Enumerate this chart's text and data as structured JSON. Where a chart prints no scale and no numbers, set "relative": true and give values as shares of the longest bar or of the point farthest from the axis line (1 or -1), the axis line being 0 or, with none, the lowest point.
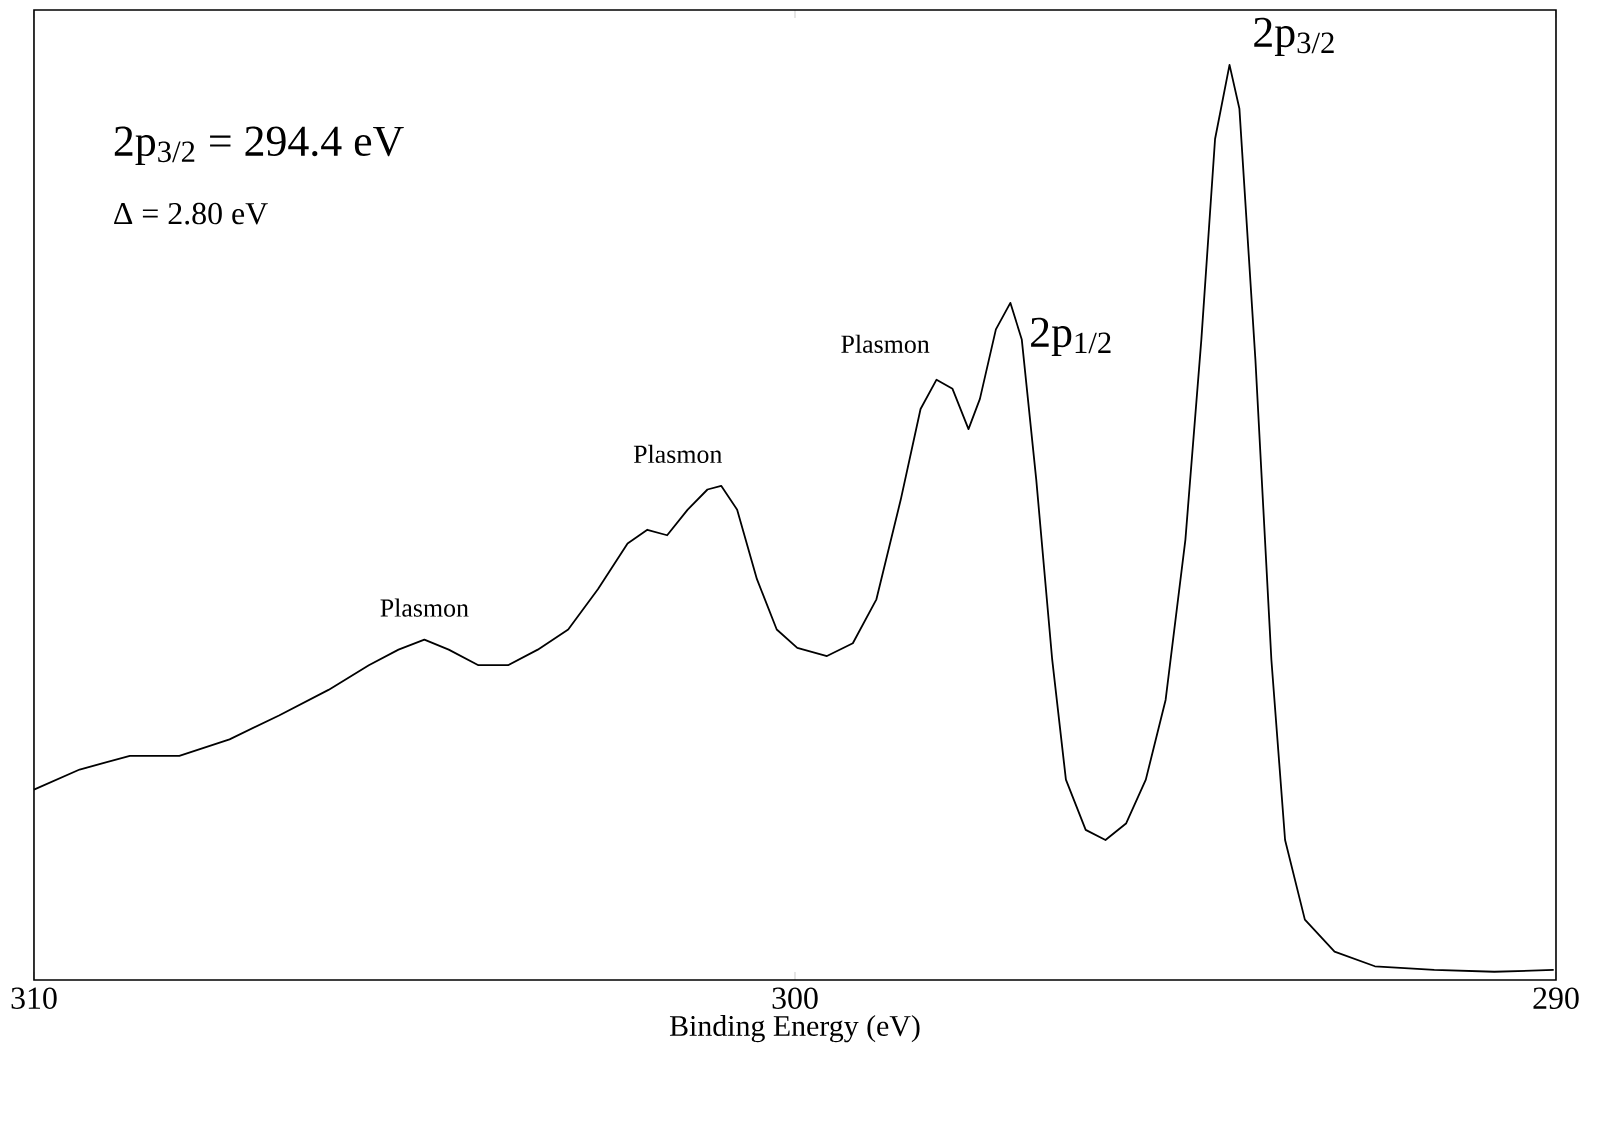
{
  "chart_data": {
    "type": "line",
    "relative": true,
    "xlabel": "Binding Energy (eV)",
    "xlim": [
      310,
      290
    ],
    "xticks": [
      310,
      300,
      290
    ],
    "x": [
      310.0,
      309.4,
      308.74,
      308.09,
      307.43,
      306.78,
      306.13,
      305.6,
      305.21,
      304.87,
      304.55,
      304.16,
      303.77,
      303.38,
      302.98,
      302.59,
      302.2,
      301.94,
      301.68,
      301.41,
      301.15,
      300.97,
      300.76,
      300.5,
      300.24,
      299.97,
      299.58,
      299.24,
      298.93,
      298.61,
      298.35,
      298.14,
      297.93,
      297.72,
      297.57,
      297.36,
      297.17,
      297.02,
      296.83,
      296.62,
      296.44,
      296.18,
      295.92,
      295.65,
      295.39,
      295.13,
      294.87,
      294.66,
      294.48,
      294.29,
      294.16,
      293.95,
      293.74,
      293.56,
      293.3,
      292.91,
      292.38,
      291.6,
      290.81,
      290.03
    ],
    "series": [
      {
        "color": "#000000",
        "values": [
          0.208,
          0.23,
          0.245,
          0.245,
          0.263,
          0.289,
          0.317,
          0.344,
          0.361,
          0.372,
          0.361,
          0.344,
          0.344,
          0.361,
          0.383,
          0.427,
          0.477,
          0.492,
          0.486,
          0.514,
          0.536,
          0.54,
          0.514,
          0.438,
          0.383,
          0.363,
          0.354,
          0.368,
          0.416,
          0.525,
          0.624,
          0.656,
          0.646,
          0.602,
          0.635,
          0.711,
          0.74,
          0.7,
          0.547,
          0.35,
          0.219,
          0.164,
          0.153,
          0.171,
          0.219,
          0.306,
          0.481,
          0.7,
          0.919,
          1,
          0.952,
          0.678,
          0.35,
          0.153,
          0.066,
          0.031,
          0.015,
          0.011,
          0.009,
          0.011
        ]
      }
    ],
    "annotations": [
      "2p$_{3/2}$ = 294.4 eV",
      "Δ = 2.80 eV",
      {
        "text": "Plasmon",
        "x": 304.87,
        "y": 0.372
      },
      {
        "text": "Plasmon",
        "x": 300.97,
        "y": 0.54
      },
      {
        "text": "Plasmon",
        "x": 298.14,
        "y": 0.656
      },
      {
        "text": "2p$_{1/2}$",
        "x": 297.17,
        "y": 0.74
      },
      {
        "text": "2p$_{3/2}$",
        "x": 294.29,
        "y": 1
      }
    ]
  }
}
